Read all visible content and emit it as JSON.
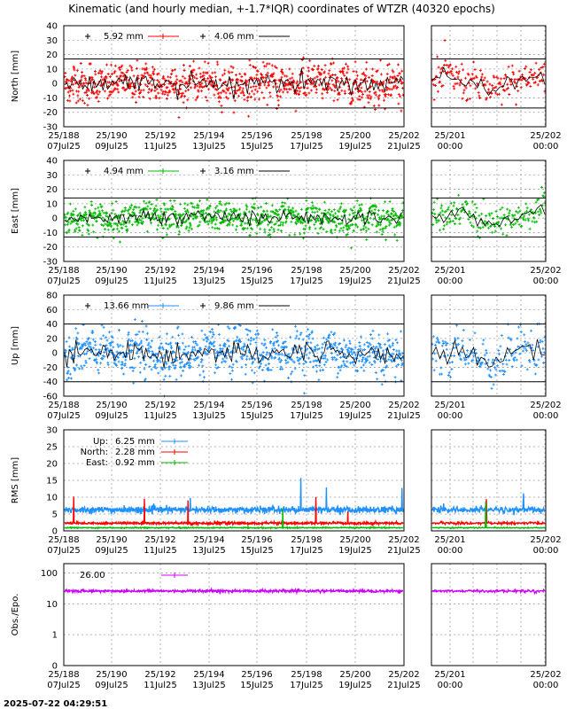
{
  "title": "Kinematic (and hourly median, +-1.7*IQR) coordinates of WTZR (40320 epochs)",
  "timestamp": "2025-07-22 04:29:51",
  "x_ticks_main": [
    {
      "doy": "25/188",
      "date": "07Jul25"
    },
    {
      "doy": "25/190",
      "date": "09Jul25"
    },
    {
      "doy": "25/192",
      "date": "11Jul25"
    },
    {
      "doy": "25/194",
      "date": "13Jul25"
    },
    {
      "doy": "25/196",
      "date": "15Jul25"
    },
    {
      "doy": "25/198",
      "date": "17Jul25"
    },
    {
      "doy": "25/200",
      "date": "19Jul25"
    },
    {
      "doy": "25/202",
      "date": "21Jul25"
    }
  ],
  "x_ticks_zoom": [
    {
      "doy": "25/201",
      "date": "00:00"
    },
    {
      "doy": "25/202",
      "date": "00:00"
    }
  ],
  "chart_data": [
    {
      "type": "scatter",
      "name": "north",
      "ylabel": "North [mm]",
      "ylim": [
        -30,
        40
      ],
      "yticks": [
        -30,
        -20,
        -10,
        0,
        10,
        20,
        30,
        40
      ],
      "color": "#ff0000",
      "limits": [
        17,
        -17
      ],
      "legend": [
        {
          "value": "5.92 mm",
          "style": "points"
        },
        {
          "value": "4.06 mm",
          "style": "line"
        }
      ],
      "noise_sd": 5.92,
      "median_amp": 4.06
    },
    {
      "type": "scatter",
      "name": "east",
      "ylabel": "East [mm]",
      "ylim": [
        -30,
        40
      ],
      "yticks": [
        -30,
        -20,
        -10,
        0,
        10,
        20,
        30,
        40
      ],
      "color": "#00bb00",
      "limits": [
        14,
        -13
      ],
      "legend": [
        {
          "value": "4.94 mm",
          "style": "points"
        },
        {
          "value": "3.16 mm",
          "style": "line"
        }
      ],
      "noise_sd": 4.94,
      "median_amp": 3.16
    },
    {
      "type": "scatter",
      "name": "up",
      "ylabel": "Up [mm]",
      "ylim": [
        -60,
        80
      ],
      "yticks": [
        -60,
        -40,
        -20,
        0,
        20,
        40,
        60,
        80
      ],
      "color": "#1e90ff",
      "limits": [
        40,
        -40
      ],
      "legend": [
        {
          "value": "13.66 mm",
          "style": "points"
        },
        {
          "value": "9.86 mm",
          "style": "line"
        }
      ],
      "noise_sd": 13.66,
      "median_amp": 9.86
    },
    {
      "type": "line",
      "name": "rms",
      "ylabel": "RMS [mm]",
      "ylim": [
        0,
        30
      ],
      "yticks": [
        0,
        5,
        10,
        15,
        20,
        25,
        30
      ],
      "series": [
        {
          "name": "Up:",
          "value": "6.25 mm",
          "color": "#1e90ff",
          "level": 6.25
        },
        {
          "name": "North:",
          "value": "2.28 mm",
          "color": "#ff0000",
          "level": 2.28
        },
        {
          "name": "East:",
          "value": "0.92 mm",
          "color": "#00bb00",
          "level": 0.92
        }
      ]
    },
    {
      "type": "line",
      "name": "obs",
      "ylabel": "Obs./Epo.",
      "ylim": [
        0,
        100
      ],
      "yscale": "log",
      "yticks": [
        0,
        1,
        10,
        100
      ],
      "series": [
        {
          "value": "26.00",
          "color": "#cc00ff",
          "level": 26
        }
      ]
    }
  ]
}
